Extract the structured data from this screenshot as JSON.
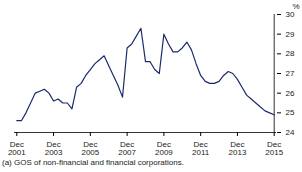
{
  "chart_data": {
    "type": "line",
    "caption": "(a) GOS of non-financial and financial corporations.",
    "y_label": "%",
    "categories": [
      "Dec 2001",
      null,
      null,
      null,
      null,
      null,
      null,
      null,
      "Dec 2003",
      null,
      null,
      null,
      null,
      null,
      null,
      null,
      "Dec 2005",
      null,
      null,
      null,
      null,
      null,
      null,
      null,
      "Dec 2007",
      null,
      null,
      null,
      null,
      null,
      null,
      null,
      "Dec 2009",
      null,
      null,
      null,
      null,
      null,
      null,
      null,
      "Dec 2011",
      null,
      null,
      null,
      null,
      null,
      null,
      null,
      "Dec 2013",
      null,
      null,
      null,
      null,
      null,
      null,
      null,
      "Dec 2015"
    ],
    "values": [
      24.6,
      24.6,
      25.0,
      25.5,
      26.0,
      26.1,
      26.2,
      26.0,
      25.6,
      25.7,
      25.5,
      25.5,
      25.2,
      26.3,
      26.5,
      26.9,
      27.2,
      27.5,
      27.7,
      27.9,
      27.4,
      26.9,
      26.4,
      25.8,
      28.3,
      28.5,
      28.9,
      29.3,
      27.6,
      27.6,
      27.2,
      27.0,
      29.0,
      28.5,
      28.1,
      28.1,
      28.3,
      28.6,
      28.2,
      27.5,
      26.9,
      26.6,
      26.5,
      26.5,
      26.6,
      26.9,
      27.1,
      27.0,
      26.7,
      26.3,
      25.9,
      25.7,
      25.5,
      25.3,
      25.1,
      25.0,
      24.9
    ],
    "color": "#1c2a6b",
    "ylim": [
      24,
      30
    ],
    "yticks": [
      24,
      25,
      26,
      27,
      28,
      29,
      30
    ],
    "grid": false
  }
}
